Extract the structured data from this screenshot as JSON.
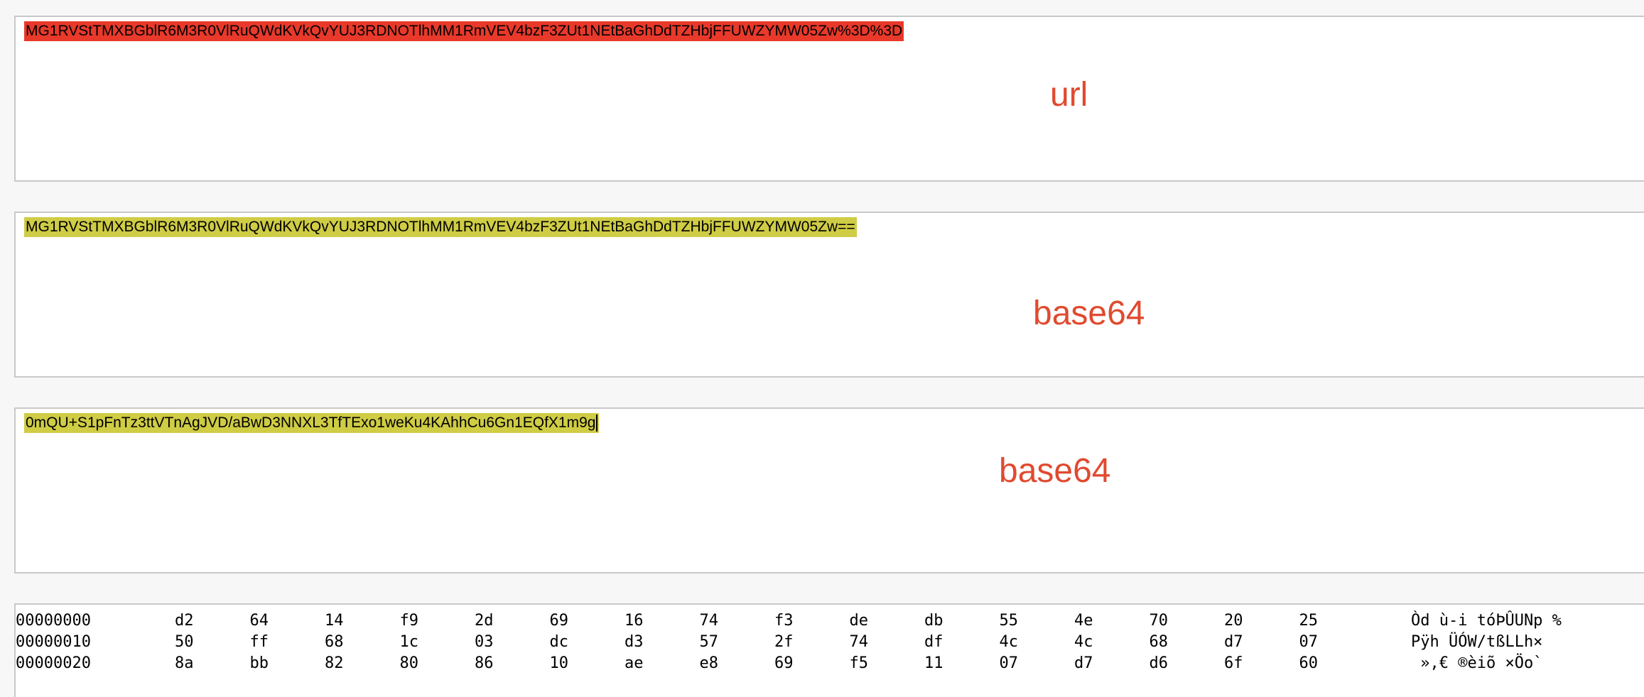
{
  "panels": [
    {
      "text": "MG1RVStTMXBGblR6M3R0VlRuQWdKVkQvYUJ3RDNOTlhMM1RmVEV4bzF3ZUt1NEtBaGhDdTZHbjFFUWZYMW05Zw%3D%3D",
      "label": "url",
      "highlight": "#e8392b"
    },
    {
      "text": "MG1RVStTMXBGblR6M3R0VlRuQWdKVkQvYUJ3RDNOTlhMM1RmVEV4bzF3ZUt1NEtBaGhDdTZHbjFFUWZYMW05Zw==",
      "label": "base64",
      "highlight": "#cfcc45"
    },
    {
      "text": "0mQU+S1pFnTz3ttVTnAgJVD/aBwD3NNXL3TfTExo1weKu4KAhhCu6Gn1EQfX1m9g",
      "label": "base64",
      "highlight": "#cfcc45"
    }
  ],
  "hex_dump": {
    "rows": [
      {
        "offset": "00000000",
        "bytes": [
          "d2",
          "64",
          "14",
          "f9",
          "2d",
          "69",
          "16",
          "74",
          "f3",
          "de",
          "db",
          "55",
          "4e",
          "70",
          "20",
          "25"
        ],
        "ascii": "Òd ù-i tóÞÛUNp %"
      },
      {
        "offset": "00000010",
        "bytes": [
          "50",
          "ff",
          "68",
          "1c",
          "03",
          "dc",
          "d3",
          "57",
          "2f",
          "74",
          "df",
          "4c",
          "4c",
          "68",
          "d7",
          "07"
        ],
        "ascii": "Pÿh ÜÓW/tßLLh×"
      },
      {
        "offset": "00000020",
        "bytes": [
          "8a",
          "bb",
          "82",
          "80",
          "86",
          "10",
          "ae",
          "e8",
          "69",
          "f5",
          "11",
          "07",
          "d7",
          "d6",
          "6f",
          "60"
        ],
        "ascii": " »‚€ ®èiõ ×Öo`"
      }
    ]
  }
}
